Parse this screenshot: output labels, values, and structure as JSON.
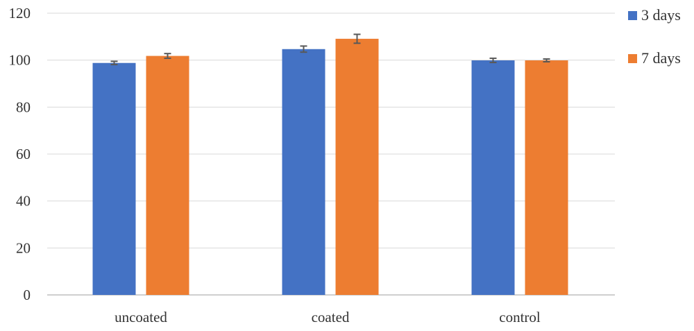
{
  "chart_data": {
    "type": "bar",
    "categories": [
      "uncoated",
      "coated",
      "control"
    ],
    "series": [
      {
        "name": "3 days",
        "color": "#4472C4",
        "values": [
          98.8,
          104.7,
          99.9
        ],
        "errors": [
          0.7,
          1.3,
          0.9
        ]
      },
      {
        "name": "7 days",
        "color": "#ED7D31",
        "values": [
          101.8,
          109.1,
          99.9
        ],
        "errors": [
          1.0,
          1.9,
          0.6
        ]
      }
    ],
    "ylim": [
      0,
      120
    ],
    "yticks": [
      0,
      20,
      40,
      60,
      80,
      100,
      120
    ],
    "grid": true,
    "legend_position": "right",
    "error_bar_color": "#595959",
    "grid_color": "#D9D9D9",
    "axis_color": "#BFBFBF"
  }
}
